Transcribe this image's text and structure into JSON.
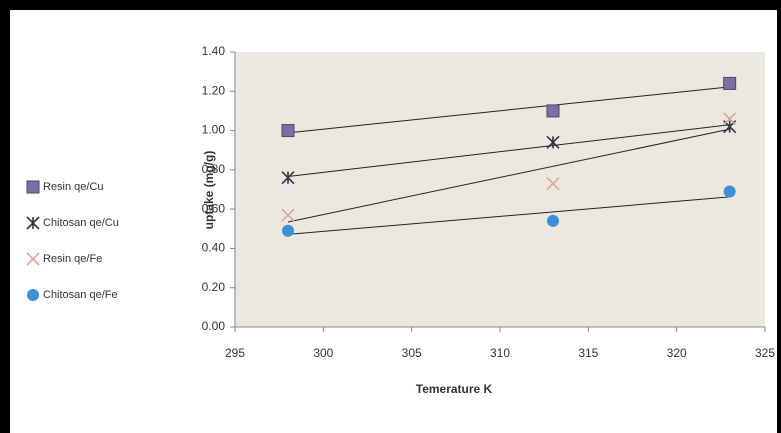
{
  "chart_data": {
    "type": "scatter",
    "x_label": "Temerature K",
    "y_label": "uptake (mg/g)",
    "x": [
      298,
      313,
      323
    ],
    "series": [
      {
        "name": "Resin qe/Cu",
        "color": "#7b6fa6",
        "marker": "square",
        "values": [
          1.0,
          1.1,
          1.24
        ]
      },
      {
        "name": "Chitosan qe/Cu",
        "color": "#2f3340",
        "marker": "asterisk",
        "values": [
          0.76,
          0.94,
          1.02
        ]
      },
      {
        "name": "Resin qe/Fe",
        "color": "#e0a394",
        "marker": "x",
        "values": [
          0.57,
          0.73,
          1.06
        ]
      },
      {
        "name": "Chitosan qe/Fe",
        "color": "#3d8fd6",
        "marker": "circle",
        "values": [
          0.49,
          0.54,
          0.69
        ]
      }
    ],
    "trendlines": true,
    "xlim": [
      295,
      325
    ],
    "xticks": [
      295,
      300,
      305,
      310,
      315,
      320,
      325
    ],
    "ylim": [
      0,
      1.4
    ],
    "yticks": [
      {
        "value": 0,
        "label": "0.00"
      },
      {
        "value": 0.2,
        "label": "0.20"
      },
      {
        "value": 0.4,
        "label": "0.40"
      },
      {
        "value": 0.6,
        "label": "0.60"
      },
      {
        "value": 0.8,
        "label": "0.80"
      },
      {
        "value": 1.0,
        "label": "1.00"
      },
      {
        "value": 1.2,
        "label": "1.20"
      },
      {
        "value": 1.4,
        "label": "1.40"
      }
    ],
    "legend": "left"
  }
}
